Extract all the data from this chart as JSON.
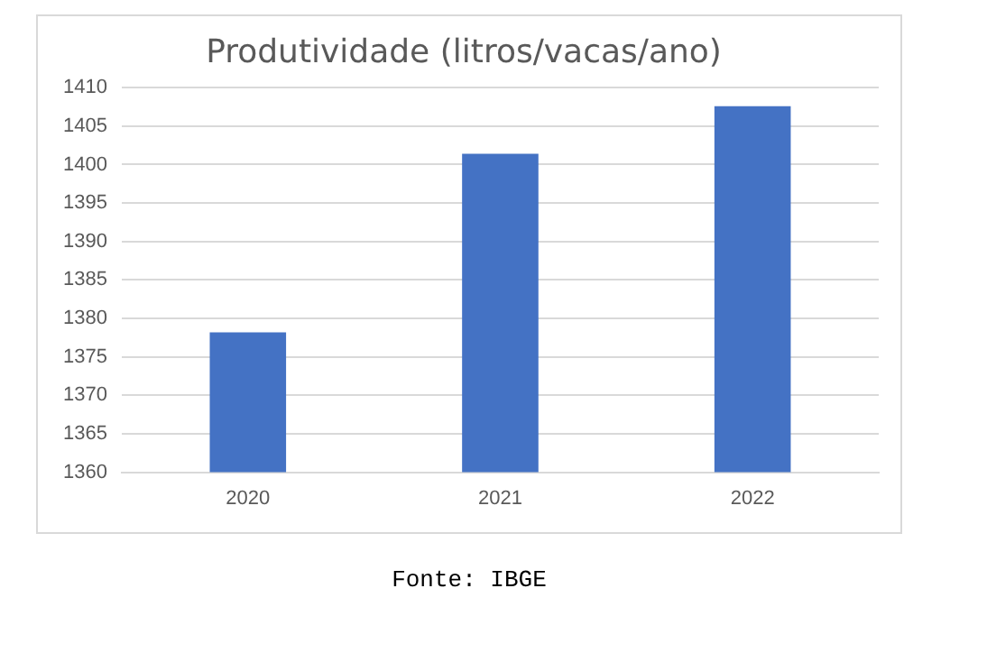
{
  "chart_data": {
    "type": "bar",
    "title": "Produtividade (litros/vacas/ano)",
    "categories": [
      "2020",
      "2021",
      "2022"
    ],
    "series": [
      {
        "color": "#4472c4",
        "values": [
          1378.2,
          1401.4,
          1407.6
        ]
      }
    ],
    "ylim": [
      1360,
      1410
    ],
    "yticks": [
      1360,
      1365,
      1370,
      1375,
      1380,
      1385,
      1390,
      1395,
      1400,
      1405,
      1410
    ],
    "grid": "y",
    "legend": false,
    "annotations": [
      "Fonte: IBGE"
    ]
  }
}
